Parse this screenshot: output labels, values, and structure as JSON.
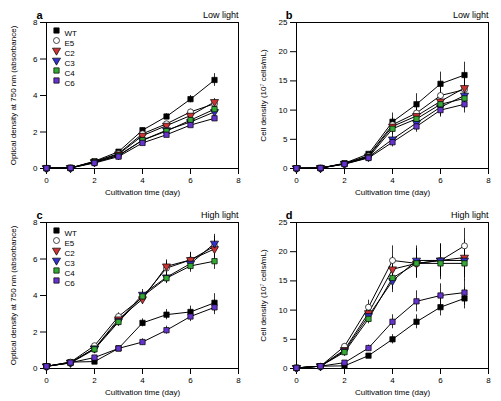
{
  "chart_data": [
    {
      "type": "line",
      "title": "Low light",
      "panel_label": "a",
      "xlabel": "Cultivation time (day)",
      "ylabel": "Optical density at 750 nm (absorbance)",
      "x": [
        0,
        1,
        2,
        3,
        4,
        5,
        6,
        7
      ],
      "xlim": [
        0,
        8
      ],
      "xticks": [
        0,
        2,
        4,
        6,
        8
      ],
      "ylim": [
        0,
        8
      ],
      "yticks": [
        0,
        2,
        4,
        6,
        8
      ],
      "grid": false,
      "legend": "upper left",
      "series": [
        {
          "name": "WT",
          "color": "black",
          "marker": "square",
          "values": [
            0.02,
            0.03,
            0.4,
            0.92,
            2.1,
            2.85,
            3.8,
            4.85
          ],
          "yerr": [
            0.01,
            0.01,
            0.03,
            0.07,
            0.12,
            0.15,
            0.2,
            0.35
          ]
        },
        {
          "name": "E5",
          "color": "white",
          "marker": "circle",
          "values": [
            0.02,
            0.03,
            0.38,
            0.82,
            1.9,
            2.45,
            3.1,
            3.55
          ],
          "yerr": [
            0.01,
            0.01,
            0.03,
            0.05,
            0.1,
            0.12,
            0.15,
            0.18
          ]
        },
        {
          "name": "C2",
          "color": "#cc3333",
          "marker": "triangle-down",
          "values": [
            0.02,
            0.03,
            0.36,
            0.78,
            1.8,
            2.35,
            2.9,
            3.65
          ],
          "yerr": [
            0.01,
            0.01,
            0.03,
            0.05,
            0.1,
            0.12,
            0.15,
            0.18
          ]
        },
        {
          "name": "C3",
          "color": "#3333cc",
          "marker": "triangle-down",
          "values": [
            0.02,
            0.03,
            0.34,
            0.72,
            1.55,
            2.1,
            2.55,
            3.1
          ],
          "yerr": [
            0.01,
            0.01,
            0.02,
            0.04,
            0.08,
            0.1,
            0.12,
            0.16
          ]
        },
        {
          "name": "C4",
          "color": "#33aa33",
          "marker": "square",
          "values": [
            0.02,
            0.03,
            0.33,
            0.7,
            1.55,
            2.05,
            2.65,
            3.25
          ],
          "yerr": [
            0.01,
            0.01,
            0.02,
            0.04,
            0.08,
            0.1,
            0.12,
            0.16
          ]
        },
        {
          "name": "C6",
          "color": "#6633cc",
          "marker": "square",
          "values": [
            0.02,
            0.03,
            0.3,
            0.65,
            1.4,
            1.85,
            2.38,
            2.75
          ],
          "yerr": [
            0.01,
            0.01,
            0.02,
            0.04,
            0.07,
            0.09,
            0.1,
            0.14
          ]
        }
      ]
    },
    {
      "type": "line",
      "title": "Low light",
      "panel_label": "b",
      "xlabel": "Cultivation time (day)",
      "ylabel": "Cell density (10⁷ cells/mL)",
      "x": [
        0,
        1,
        2,
        3,
        4,
        5,
        6,
        7
      ],
      "xlim": [
        0,
        8
      ],
      "xticks": [
        0,
        2,
        4,
        6,
        8
      ],
      "ylim": [
        0,
        25
      ],
      "yticks": [
        0,
        5,
        10,
        15,
        20,
        25
      ],
      "grid": false,
      "series": [
        {
          "name": "WT",
          "color": "black",
          "marker": "square",
          "values": [
            0.05,
            0.08,
            0.9,
            2.5,
            8.0,
            11.0,
            14.5,
            16.0
          ],
          "yerr": [
            0.02,
            0.03,
            0.1,
            0.25,
            1.5,
            1.8,
            2.0,
            2.2
          ]
        },
        {
          "name": "E5",
          "color": "white",
          "marker": "circle",
          "values": [
            0.05,
            0.08,
            0.85,
            2.2,
            7.5,
            9.5,
            12.5,
            13.5
          ],
          "yerr": [
            0.02,
            0.03,
            0.08,
            0.2,
            1.2,
            1.5,
            1.8,
            2.0
          ]
        },
        {
          "name": "C2",
          "color": "#cc3333",
          "marker": "triangle-down",
          "values": [
            0.05,
            0.08,
            0.82,
            2.1,
            7.2,
            9.0,
            11.5,
            13.8
          ],
          "yerr": [
            0.02,
            0.03,
            0.08,
            0.18,
            1.2,
            1.5,
            1.8,
            2.0
          ]
        },
        {
          "name": "C3",
          "color": "#3333cc",
          "marker": "triangle-down",
          "values": [
            0.05,
            0.08,
            0.78,
            1.95,
            5.0,
            7.8,
            10.5,
            12.5
          ],
          "yerr": [
            0.02,
            0.03,
            0.07,
            0.15,
            1.0,
            1.2,
            1.5,
            1.8
          ]
        },
        {
          "name": "C4",
          "color": "#33aa33",
          "marker": "square",
          "values": [
            0.05,
            0.08,
            0.78,
            1.9,
            6.8,
            8.5,
            11.0,
            12.0
          ],
          "yerr": [
            0.02,
            0.03,
            0.07,
            0.15,
            1.0,
            1.2,
            1.5,
            1.8
          ]
        },
        {
          "name": "C6",
          "color": "#6633cc",
          "marker": "square",
          "values": [
            0.05,
            0.08,
            0.75,
            1.8,
            4.5,
            7.2,
            10.0,
            11.0
          ],
          "yerr": [
            0.02,
            0.03,
            0.07,
            0.12,
            0.8,
            1.0,
            1.2,
            1.5
          ]
        }
      ]
    },
    {
      "type": "line",
      "title": "High light",
      "panel_label": "c",
      "xlabel": "Cultivation time (day)",
      "ylabel": "Optical density at 750 nm (absorbance)",
      "x": [
        0,
        1,
        2,
        3,
        4,
        5,
        6,
        7
      ],
      "xlim": [
        0,
        8
      ],
      "xticks": [
        0,
        2,
        4,
        6,
        8
      ],
      "ylim": [
        0,
        8
      ],
      "yticks": [
        0,
        2,
        4,
        6,
        8
      ],
      "grid": false,
      "legend": "upper left",
      "series": [
        {
          "name": "WT",
          "color": "black",
          "marker": "square",
          "values": [
            0.12,
            0.35,
            0.38,
            1.1,
            2.5,
            2.95,
            3.1,
            3.6
          ],
          "yerr": [
            0.03,
            0.05,
            0.05,
            0.12,
            0.22,
            0.28,
            0.32,
            0.5
          ]
        },
        {
          "name": "E5",
          "color": "white",
          "marker": "circle",
          "values": [
            0.12,
            0.35,
            1.25,
            2.85,
            3.9,
            5.5,
            5.95,
            6.7
          ],
          "yerr": [
            0.03,
            0.06,
            0.12,
            0.2,
            0.3,
            0.38,
            0.42,
            0.55
          ]
        },
        {
          "name": "C2",
          "color": "#cc3333",
          "marker": "triangle-down",
          "values": [
            0.12,
            0.32,
            1.1,
            2.7,
            3.8,
            5.6,
            5.95,
            6.55
          ],
          "yerr": [
            0.03,
            0.05,
            0.1,
            0.18,
            0.28,
            0.35,
            0.4,
            0.5
          ]
        },
        {
          "name": "C3",
          "color": "#3333cc",
          "marker": "triangle-down",
          "values": [
            0.12,
            0.32,
            1.1,
            2.6,
            4.05,
            5.0,
            5.75,
            6.85
          ],
          "yerr": [
            0.03,
            0.05,
            0.1,
            0.18,
            0.28,
            0.32,
            0.38,
            0.5
          ]
        },
        {
          "name": "C4",
          "color": "#33aa33",
          "marker": "square",
          "values": [
            0.12,
            0.3,
            1.05,
            2.55,
            3.95,
            4.95,
            5.62,
            5.88
          ],
          "yerr": [
            0.03,
            0.05,
            0.08,
            0.15,
            0.25,
            0.3,
            0.35,
            0.45
          ]
        },
        {
          "name": "C6",
          "color": "#6633cc",
          "marker": "square",
          "values": [
            0.12,
            0.32,
            0.6,
            1.1,
            1.45,
            2.1,
            2.85,
            3.35
          ],
          "yerr": [
            0.03,
            0.05,
            0.07,
            0.12,
            0.18,
            0.22,
            0.28,
            0.4
          ]
        }
      ]
    },
    {
      "type": "line",
      "title": "High light",
      "panel_label": "d",
      "xlabel": "Cultivation time (day)",
      "ylabel": "Cell density (10⁷ cells/mL)",
      "x": [
        0,
        1,
        2,
        3,
        4,
        5,
        6,
        7
      ],
      "xlim": [
        0,
        8
      ],
      "xticks": [
        0,
        2,
        4,
        6,
        8
      ],
      "ylim": [
        0,
        25
      ],
      "yticks": [
        0,
        5,
        10,
        15,
        20,
        25
      ],
      "grid": false,
      "series": [
        {
          "name": "WT",
          "color": "black",
          "marker": "square",
          "values": [
            0.1,
            0.4,
            0.45,
            2.2,
            5.0,
            8.0,
            10.5,
            12.0
          ],
          "yerr": [
            0.05,
            0.08,
            0.08,
            0.35,
            0.8,
            1.2,
            1.5,
            1.8
          ]
        },
        {
          "name": "E5",
          "color": "white",
          "marker": "circle",
          "values": [
            0.1,
            0.4,
            3.8,
            10.5,
            18.5,
            18.0,
            18.5,
            21.0
          ],
          "yerr": [
            0.05,
            0.08,
            0.4,
            1.2,
            2.5,
            2.5,
            2.8,
            3.0
          ]
        },
        {
          "name": "C2",
          "color": "#cc3333",
          "marker": "triangle-down",
          "values": [
            0.1,
            0.4,
            3.2,
            9.5,
            17.0,
            18.0,
            18.5,
            19.0
          ],
          "yerr": [
            0.05,
            0.08,
            0.3,
            1.0,
            2.2,
            2.5,
            2.8,
            3.0
          ]
        },
        {
          "name": "C3",
          "color": "#3333cc",
          "marker": "triangle-down",
          "values": [
            0.1,
            0.4,
            3.0,
            9.0,
            15.0,
            18.5,
            18.5,
            18.5
          ],
          "yerr": [
            0.05,
            0.08,
            0.28,
            0.9,
            2.0,
            2.5,
            2.8,
            3.0
          ]
        },
        {
          "name": "C4",
          "color": "#33aa33",
          "marker": "square",
          "values": [
            0.1,
            0.4,
            2.8,
            8.5,
            15.5,
            18.0,
            18.0,
            18.0
          ],
          "yerr": [
            0.05,
            0.08,
            0.25,
            0.85,
            2.0,
            2.5,
            2.8,
            3.0
          ]
        },
        {
          "name": "C6",
          "color": "#6633cc",
          "marker": "square",
          "values": [
            0.1,
            0.4,
            1.0,
            3.5,
            8.0,
            11.5,
            12.5,
            13.0
          ],
          "yerr": [
            0.05,
            0.08,
            0.12,
            0.5,
            1.2,
            1.8,
            2.0,
            2.2
          ]
        }
      ]
    }
  ]
}
